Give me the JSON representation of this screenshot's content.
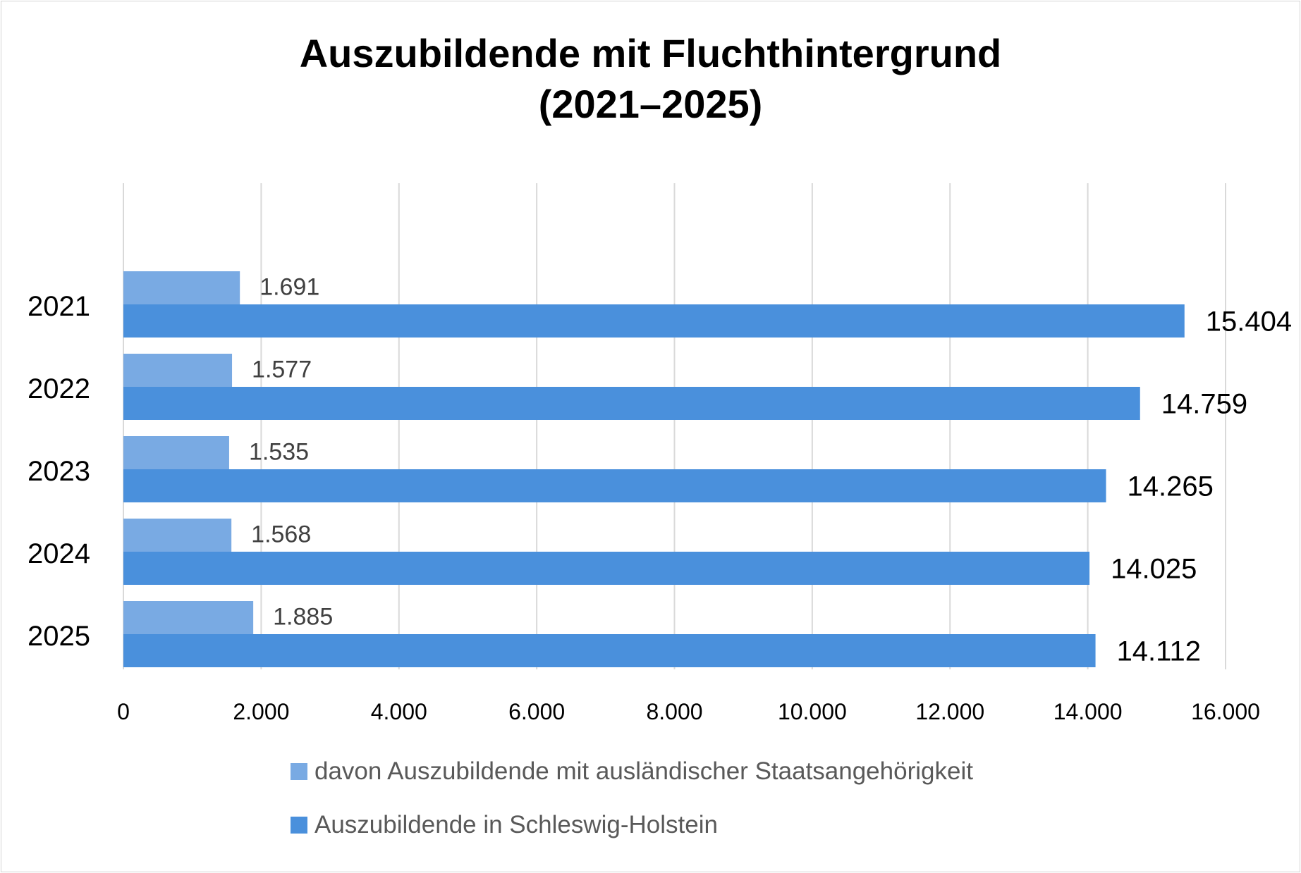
{
  "chart_data": {
    "type": "bar",
    "orientation": "horizontal",
    "title_line1": "Auszubildende mit Fluchthintergrund",
    "title_line2": "(2021–2025)",
    "categories": [
      "2021",
      "2022",
      "2023",
      "2024",
      "2025"
    ],
    "series": [
      {
        "name": "davon Auszubildende mit ausländischer Staatsangehörigkeit",
        "values": [
          1691,
          1577,
          1535,
          1568,
          1885
        ],
        "labels": [
          "1.691",
          "1.577",
          "1.535",
          "1.568",
          "1.885"
        ],
        "color": "#79aae3"
      },
      {
        "name": "Auszubildende in Schleswig-Holstein",
        "values": [
          15404,
          14759,
          14265,
          14025,
          14112
        ],
        "labels": [
          "15.404",
          "14.759",
          "14.265",
          "14.025",
          "14.112"
        ],
        "color": "#4a90dc"
      }
    ],
    "xlim": [
      0,
      16000
    ],
    "xticks": [
      0,
      2000,
      4000,
      6000,
      8000,
      10000,
      12000,
      14000,
      16000
    ],
    "xtick_labels": [
      "0",
      "2.000",
      "4.000",
      "6.000",
      "8.000",
      "10.000",
      "12.000",
      "14.000",
      "16.000"
    ],
    "grid": true,
    "legend_position": "bottom"
  }
}
